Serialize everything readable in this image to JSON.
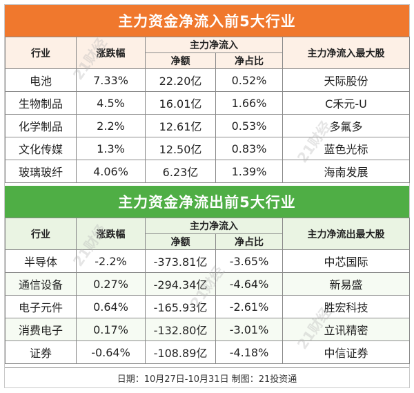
{
  "inflow": {
    "title": "主力资金净流入前5大行业",
    "headers": {
      "industry": "行业",
      "change": "涨跌幅",
      "net_group": "主力净流入",
      "amount": "净额",
      "ratio": "净占比",
      "top_stock": "主力净流入最大股"
    },
    "rows": [
      {
        "industry": "电池",
        "change": "7.33%",
        "amount": "22.20亿",
        "ratio": "0.52%",
        "stock": "天际股份"
      },
      {
        "industry": "生物制品",
        "change": "4.5%",
        "amount": "16.01亿",
        "ratio": "1.66%",
        "stock": "C禾元-U"
      },
      {
        "industry": "化学制品",
        "change": "2.2%",
        "amount": "12.61亿",
        "ratio": "0.53%",
        "stock": "多氟多"
      },
      {
        "industry": "文化传媒",
        "change": "1.3%",
        "amount": "12.50亿",
        "ratio": "0.83%",
        "stock": "蓝色光标"
      },
      {
        "industry": "玻璃玻纤",
        "change": "4.06%",
        "amount": "6.23亿",
        "ratio": "1.39%",
        "stock": "海南发展"
      }
    ]
  },
  "outflow": {
    "title": "主力资金净流出前5大行业",
    "headers": {
      "industry": "行业",
      "change": "涨跌幅",
      "net_group": "主力净流入",
      "amount": "净额",
      "ratio": "净占比",
      "top_stock": "主力净流出最大股"
    },
    "rows": [
      {
        "industry": "半导体",
        "change": "-2.2%",
        "amount": "-373.81亿",
        "ratio": "-3.65%",
        "stock": "中芯国际"
      },
      {
        "industry": "通信设备",
        "change": "0.27%",
        "amount": "-294.34亿",
        "ratio": "-4.64%",
        "stock": "新易盛"
      },
      {
        "industry": "电子元件",
        "change": "0.64%",
        "amount": "-165.93亿",
        "ratio": "-2.61%",
        "stock": "胜宏科技"
      },
      {
        "industry": "消费电子",
        "change": "0.17%",
        "amount": "-132.80亿",
        "ratio": "-3.01%",
        "stock": "立讯精密"
      },
      {
        "industry": "证券",
        "change": "-0.64%",
        "amount": "-108.89亿",
        "ratio": "-4.18%",
        "stock": "中信证券"
      }
    ]
  },
  "footer": "日期：10月27日-10月31日 制图：21投资通",
  "watermark": "21财经",
  "colors": {
    "inflow_header": "#f0782d",
    "outflow_header": "#4fae45"
  }
}
